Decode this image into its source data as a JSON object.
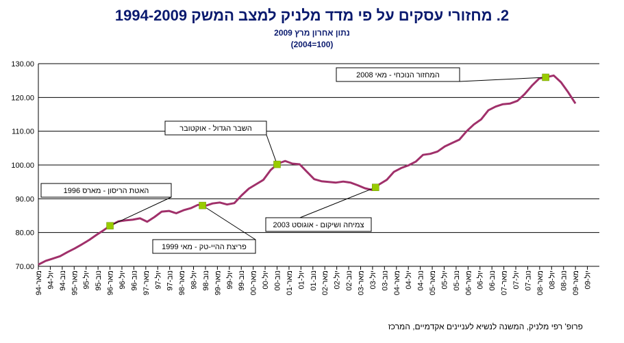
{
  "title": "2.   מחזורי עסקים על פי מדד מלניק למצב המשק 1994-2009",
  "subtitle_line1": "נתון אחרון מרץ 2009",
  "subtitle_line2": "(2004=100)",
  "credit": "פרופ' רפי מלניק, המשנה לנשיא לעניינים אקדמיים, המרכז",
  "chart_data": {
    "type": "line",
    "ylim": [
      70,
      130
    ],
    "yticks": [
      "70.00",
      "80.00",
      "90.00",
      "100.00",
      "110.00",
      "120.00",
      "130.00"
    ],
    "ytick_values": [
      70,
      80,
      90,
      100,
      110,
      120,
      130
    ],
    "xtick_labels": [
      "מאר-94",
      "יול-94",
      "נוב-94",
      "מאר-95",
      "יול-95",
      "נוב-95",
      "מאר-96",
      "יול-96",
      "נוב-96",
      "מאר-97",
      "יול-97",
      "נוב-97",
      "מאר-98",
      "יול-98",
      "נוב-98",
      "מאר-99",
      "יול-99",
      "נוב-99",
      "מאר-00",
      "יול-00",
      "נוב-00",
      "מאר-01",
      "יול-01",
      "נוב-01",
      "מאר-02",
      "יול-02",
      "נוב-02",
      "מאר-03",
      "יול-03",
      "נוב-03",
      "מאר-04",
      "יול-04",
      "נוב-04",
      "מאר-05",
      "יול-05",
      "נוב-05",
      "מאר-06",
      "יול-06",
      "נוב-06",
      "מאר-07",
      "יול-07",
      "נוב-07",
      "מאר-08",
      "יול-08",
      "נוב-08",
      "מאר-09",
      "יול-09"
    ],
    "grid": true,
    "line_color": "#a0306a",
    "marker_color": "#99cc00",
    "series": [
      {
        "values": [
          70.5,
          71.6,
          72.3,
          73.0,
          74.2,
          75.3,
          76.5,
          77.8,
          79.3,
          80.7,
          82.2,
          83.3,
          83.6,
          83.8,
          84.2,
          83.2,
          84.6,
          86.2,
          86.4,
          85.7,
          86.6,
          87.2,
          88.2,
          87.9,
          88.6,
          88.9,
          88.3,
          88.7,
          91.0,
          93.0,
          94.3,
          95.6,
          98.5,
          100.4,
          101.2,
          100.4,
          100.2,
          98.0,
          95.8,
          95.2,
          95.0,
          94.8,
          95.1,
          94.8,
          94.0,
          93.1,
          92.6,
          94.3,
          95.6,
          98.0,
          99.1,
          99.9,
          101.0,
          103.0,
          103.3,
          104.0,
          105.5,
          106.5,
          107.5,
          110.0,
          112.0,
          113.5,
          116.2,
          117.3,
          118.0,
          118.2,
          119.0,
          121.0,
          123.5,
          125.6,
          126.0,
          126.5,
          124.5,
          121.5,
          118.2
        ]
      }
    ],
    "annotations": [
      {
        "text": "האטת הריסון - מארס 1996",
        "point_index": 24
      },
      {
        "text": "פריצת ההיי-טק - מאי 1999",
        "point_index": 55
      },
      {
        "text": "השבר הגדול - אוקטובר",
        "point_index": 80
      },
      {
        "text": "צמיחה ושיקום - אוגוסט 2003",
        "point_index": 113
      },
      {
        "text": "המחזור הנוכחי - מאי 2008",
        "point_index": 170
      }
    ]
  }
}
